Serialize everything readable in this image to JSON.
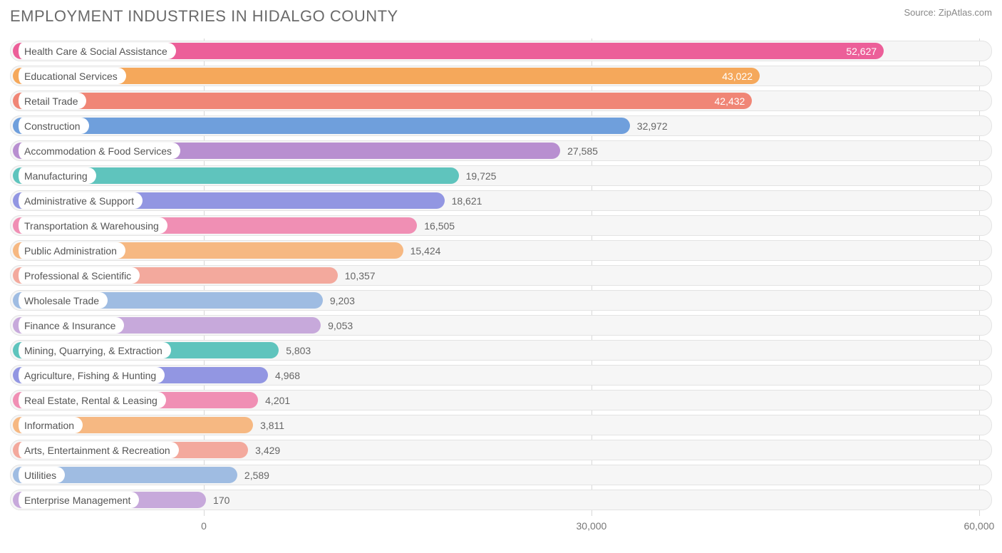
{
  "header": {
    "title": "EMPLOYMENT INDUSTRIES IN HIDALGO COUNTY",
    "source_prefix": "Source: ",
    "source_name": "ZipAtlas.com"
  },
  "chart": {
    "type": "bar",
    "orientation": "horizontal",
    "background_color": "#ffffff",
    "row_bg_color": "#f6f6f6",
    "row_border_color": "#e3e3e3",
    "grid_color": "#d8d8d8",
    "label_fontsize": 14,
    "title_fontsize": 22,
    "title_color": "#6a6a6a",
    "xaxis": {
      "min": -15000,
      "max": 61000,
      "ticks": [
        {
          "value": 0,
          "label": "0"
        },
        {
          "value": 30000,
          "label": "30,000"
        },
        {
          "value": 60000,
          "label": "60,000"
        }
      ]
    },
    "bar_start": 0,
    "colors": {
      "pink": "#ec5f99",
      "orange": "#f5a85b",
      "salmon": "#f08676",
      "blue": "#6f9fdc",
      "purple": "#b88fd0",
      "teal": "#5fc4bd",
      "periwinkle": "#9296e2",
      "lightpink": "#f08fb4",
      "lightorange": "#f6b882",
      "lightsalmon": "#f3a99d",
      "lightblue": "#9fbce2",
      "lightpurple": "#c7a9db"
    },
    "rows": [
      {
        "label": "Health Care & Social Assistance",
        "value": 52627,
        "display": "52,627",
        "color": "pink",
        "value_inside": true
      },
      {
        "label": "Educational Services",
        "value": 43022,
        "display": "43,022",
        "color": "orange",
        "value_inside": true
      },
      {
        "label": "Retail Trade",
        "value": 42432,
        "display": "42,432",
        "color": "salmon",
        "value_inside": true
      },
      {
        "label": "Construction",
        "value": 32972,
        "display": "32,972",
        "color": "blue",
        "value_inside": false
      },
      {
        "label": "Accommodation & Food Services",
        "value": 27585,
        "display": "27,585",
        "color": "purple",
        "value_inside": false
      },
      {
        "label": "Manufacturing",
        "value": 19725,
        "display": "19,725",
        "color": "teal",
        "value_inside": false
      },
      {
        "label": "Administrative & Support",
        "value": 18621,
        "display": "18,621",
        "color": "periwinkle",
        "value_inside": false
      },
      {
        "label": "Transportation & Warehousing",
        "value": 16505,
        "display": "16,505",
        "color": "lightpink",
        "value_inside": false
      },
      {
        "label": "Public Administration",
        "value": 15424,
        "display": "15,424",
        "color": "lightorange",
        "value_inside": false
      },
      {
        "label": "Professional & Scientific",
        "value": 10357,
        "display": "10,357",
        "color": "lightsalmon",
        "value_inside": false
      },
      {
        "label": "Wholesale Trade",
        "value": 9203,
        "display": "9,203",
        "color": "lightblue",
        "value_inside": false
      },
      {
        "label": "Finance & Insurance",
        "value": 9053,
        "display": "9,053",
        "color": "lightpurple",
        "value_inside": false
      },
      {
        "label": "Mining, Quarrying, & Extraction",
        "value": 5803,
        "display": "5,803",
        "color": "teal",
        "value_inside": false
      },
      {
        "label": "Agriculture, Fishing & Hunting",
        "value": 4968,
        "display": "4,968",
        "color": "periwinkle",
        "value_inside": false
      },
      {
        "label": "Real Estate, Rental & Leasing",
        "value": 4201,
        "display": "4,201",
        "color": "lightpink",
        "value_inside": false
      },
      {
        "label": "Information",
        "value": 3811,
        "display": "3,811",
        "color": "lightorange",
        "value_inside": false
      },
      {
        "label": "Arts, Entertainment & Recreation",
        "value": 3429,
        "display": "3,429",
        "color": "lightsalmon",
        "value_inside": false
      },
      {
        "label": "Utilities",
        "value": 2589,
        "display": "2,589",
        "color": "lightblue",
        "value_inside": false
      },
      {
        "label": "Enterprise Management",
        "value": 170,
        "display": "170",
        "color": "lightpurple",
        "value_inside": false
      }
    ]
  }
}
